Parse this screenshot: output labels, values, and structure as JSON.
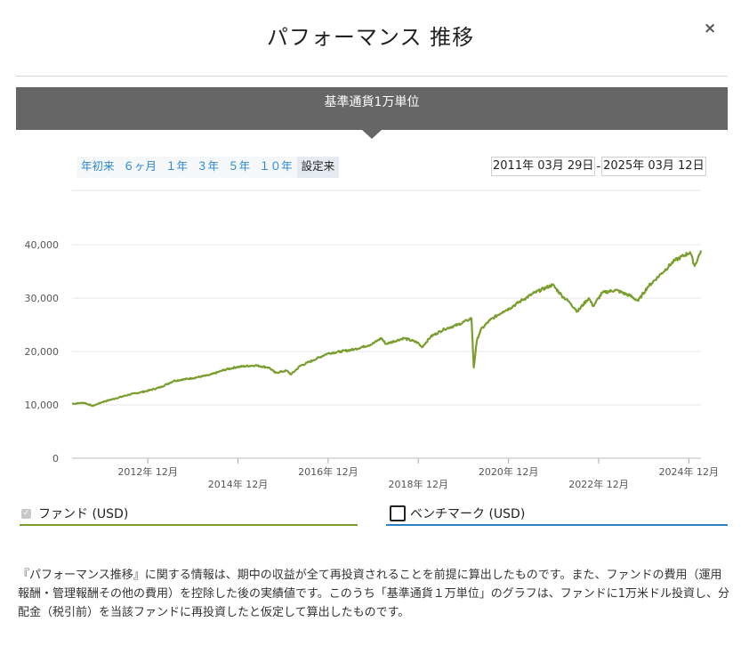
{
  "modal": {
    "title": "パフォーマンス 推移",
    "close": "×",
    "banner": "基準通貨1万単位"
  },
  "ranges": [
    "年初来",
    "６ヶ月",
    "１年",
    "３年",
    "５年",
    "１０年",
    "設定来"
  ],
  "active_range": "設定来",
  "dates": {
    "start": "2011年 03月 29日",
    "separator": "-",
    "end": "2025年 03月 12日"
  },
  "legend": {
    "fund": "ファンド (USD)",
    "benchmark": "ベンチマーク (USD)"
  },
  "colors": {
    "fund": "#7a9e2e",
    "benchmark": "#2d7fbf",
    "banner": "#666666",
    "link": "#2a8ad0"
  },
  "note": "『パフォーマンス推移』に関する情報は、期中の収益が全て再投資されることを前提に算出したものです。また、ファンドの費用（運用報酬・管理報酬その他の費用）を控除した後の実績値です。このうち「基準通貨１万単位」のグラフは、ファンドに1万米ドル投資し、分配金（税引前）を当該ファンドに再投資したと仮定して算出したものです。",
  "chart_data": {
    "type": "line",
    "title": "基準通貨1万単位",
    "xlabel": "",
    "ylabel": "",
    "xlim": [
      2011.24,
      2025.19
    ],
    "ylim": [
      0,
      40000
    ],
    "y_ticks": [
      0,
      10000,
      20000,
      30000,
      40000
    ],
    "y_tick_labels": [
      "0",
      "10,000",
      "20,000",
      "30,000",
      "40,000"
    ],
    "x_ticks": [
      {
        "x": 2012.92,
        "label": "2012年 12月",
        "row": 1
      },
      {
        "x": 2014.92,
        "label": "2014年 12月",
        "row": 2
      },
      {
        "x": 2016.92,
        "label": "2016年 12月",
        "row": 1
      },
      {
        "x": 2018.92,
        "label": "2018年 12月",
        "row": 2
      },
      {
        "x": 2020.92,
        "label": "2020年 12月",
        "row": 1
      },
      {
        "x": 2022.92,
        "label": "2022年 12月",
        "row": 2
      },
      {
        "x": 2024.92,
        "label": "2024年 12月",
        "row": 1
      }
    ],
    "grid": true,
    "series": [
      {
        "name": "ファンド (USD)",
        "x": [
          2011.24,
          2011.5,
          2011.7,
          2011.9,
          2012.2,
          2012.5,
          2012.9,
          2013.2,
          2013.5,
          2013.9,
          2014.3,
          2014.6,
          2014.9,
          2015.3,
          2015.6,
          2015.75,
          2016.0,
          2016.1,
          2016.3,
          2016.6,
          2016.9,
          2017.2,
          2017.5,
          2017.9,
          2018.1,
          2018.2,
          2018.6,
          2018.9,
          2019.0,
          2019.2,
          2019.5,
          2019.8,
          2020.0,
          2020.1,
          2020.15,
          2020.22,
          2020.3,
          2020.5,
          2020.8,
          2020.95,
          2021.2,
          2021.5,
          2021.9,
          2022.1,
          2022.3,
          2022.45,
          2022.7,
          2022.8,
          2023.0,
          2023.3,
          2023.6,
          2023.8,
          2024.0,
          2024.3,
          2024.6,
          2024.95,
          2025.05,
          2025.19
        ],
        "y": [
          10200,
          10400,
          9800,
          10500,
          11200,
          11900,
          12600,
          13300,
          14500,
          15000,
          15600,
          16500,
          17100,
          17400,
          17000,
          16000,
          16400,
          15700,
          17300,
          18400,
          19600,
          20000,
          20400,
          21400,
          22500,
          21400,
          22500,
          21700,
          20800,
          22800,
          24200,
          25000,
          25800,
          26200,
          17000,
          22000,
          24000,
          25800,
          27500,
          28100,
          29500,
          31000,
          32500,
          30500,
          29000,
          27500,
          30000,
          28500,
          31000,
          31500,
          30500,
          29500,
          32000,
          34500,
          37000,
          38600,
          36000,
          38900
        ]
      }
    ]
  }
}
